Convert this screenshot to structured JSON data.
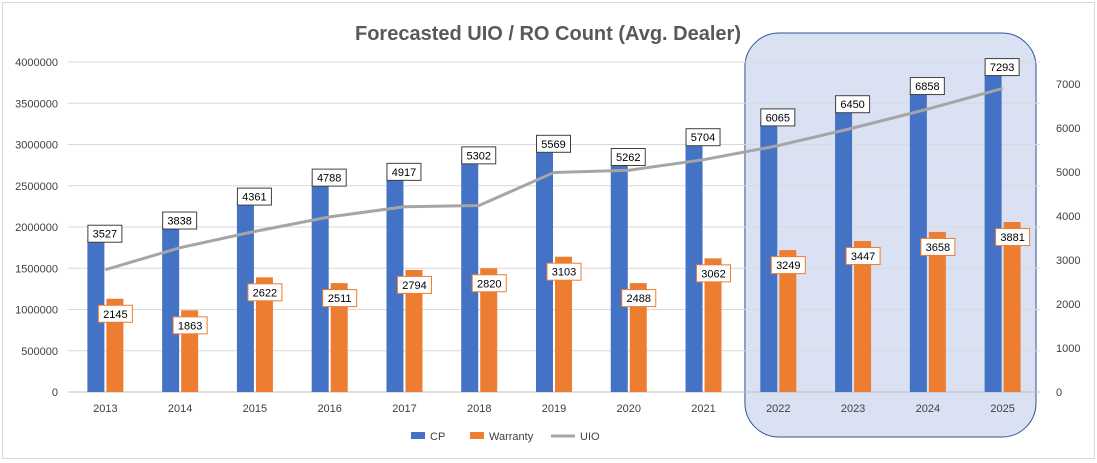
{
  "chart_data": {
    "type": "bar",
    "title": "Forecasted UIO / RO Count (Avg. Dealer)",
    "categories": [
      "2013",
      "2014",
      "2015",
      "2016",
      "2017",
      "2018",
      "2019",
      "2020",
      "2021",
      "2022",
      "2023",
      "2024",
      "2025"
    ],
    "series": [
      {
        "name": "CP",
        "type": "bar",
        "axis": "left",
        "color": "#4472C4",
        "values": [
          1870000,
          2030000,
          2320000,
          2550000,
          2620000,
          2820000,
          2960000,
          2800000,
          3040000,
          3280000,
          3440000,
          3660000,
          3890000
        ]
      },
      {
        "name": "Warranty",
        "type": "bar",
        "axis": "left",
        "color": "#ED7D31",
        "values": [
          1130000,
          990000,
          1390000,
          1320000,
          1480000,
          1500000,
          1640000,
          1320000,
          1620000,
          1720000,
          1830000,
          1940000,
          2060000
        ]
      },
      {
        "name": "UIO",
        "type": "line",
        "axis": "right",
        "color": "#A5A5A5",
        "values": [
          2780,
          3280,
          3650,
          3980,
          4210,
          4240,
          4990,
          5040,
          5280,
          5600,
          6000,
          6430,
          6900
        ]
      }
    ],
    "data_labels": {
      "cp": [
        "3527",
        "3838",
        "4361",
        "4788",
        "4917",
        "5302",
        "5569",
        "5262",
        "5704",
        "6065",
        "6450",
        "6858",
        "7293"
      ],
      "warranty": [
        "2145",
        "1863",
        "2622",
        "2511",
        "2794",
        "2820",
        "3103",
        "2488",
        "3062",
        "3249",
        "3447",
        "3658",
        "3881"
      ]
    },
    "left_axis": {
      "min": 0,
      "max": 4000000,
      "ticks": [
        "0",
        "500000",
        "1000000",
        "1500000",
        "2000000",
        "2500000",
        "3000000",
        "3500000",
        "4000000"
      ]
    },
    "right_axis": {
      "min": 0,
      "max": 7500,
      "ticks": [
        "0",
        "1000",
        "2000",
        "3000",
        "4000",
        "5000",
        "6000",
        "7000"
      ]
    },
    "grid": true,
    "legend_position": "bottom",
    "highlight_categories": [
      "2022",
      "2023",
      "2024",
      "2025"
    ],
    "highlight_color": "#D9E1F2"
  }
}
